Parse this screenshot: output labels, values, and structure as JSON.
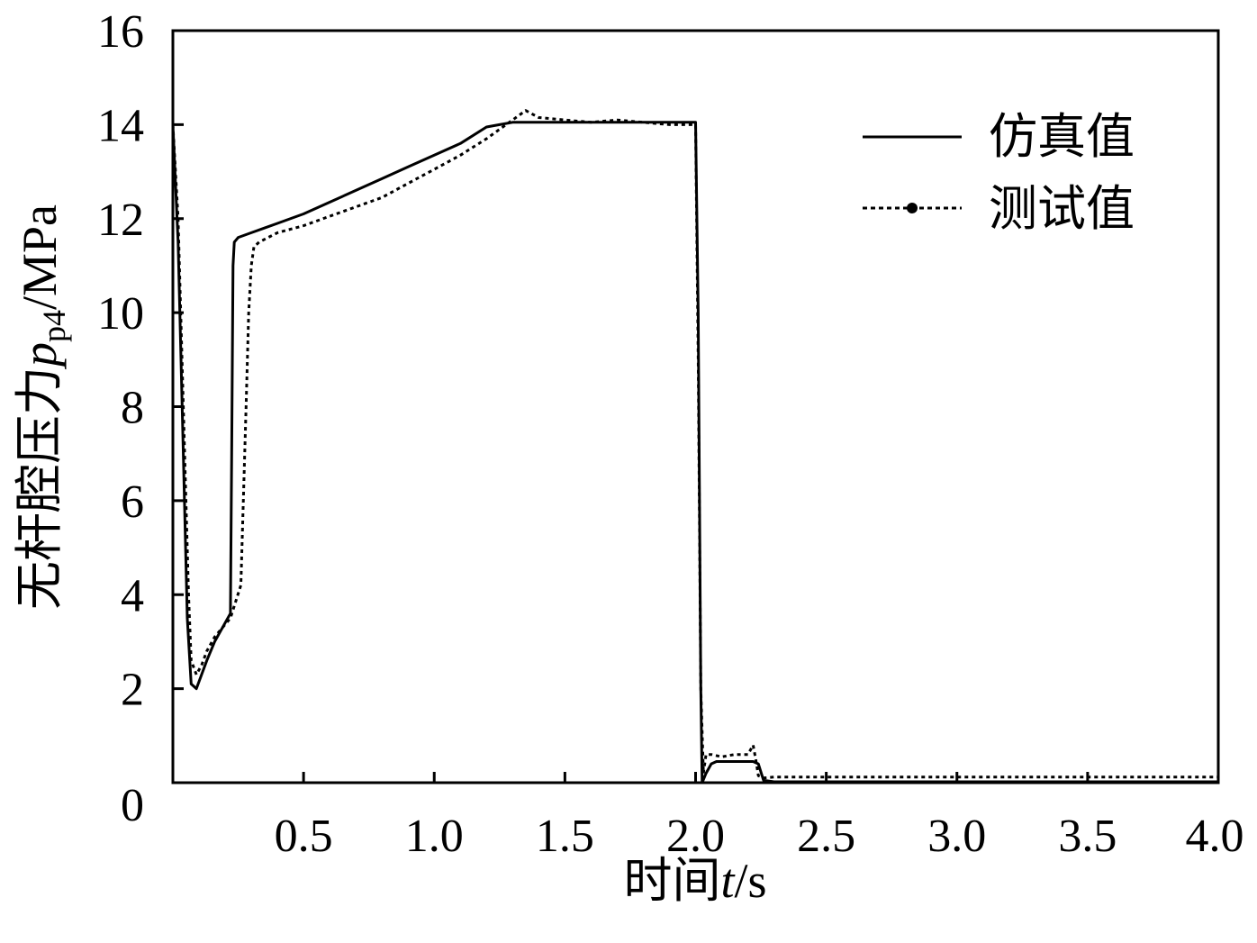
{
  "chart_data": {
    "type": "line",
    "xlabel": {
      "prefix": "时间",
      "var": "t",
      "suffix": "/s"
    },
    "ylabel": {
      "prefix": "无杆腔压力",
      "var": "p",
      "sub": "p4",
      "suffix": "/MPa"
    },
    "xlim": [
      0,
      4.0
    ],
    "ylim": [
      0,
      16
    ],
    "x_ticks": [
      0.5,
      1.0,
      1.5,
      2.0,
      2.5,
      3.0,
      3.5,
      4.0
    ],
    "x_tick_labels": [
      "0.5",
      "1.0",
      "1.5",
      "2.0",
      "2.5",
      "3.0",
      "3.5",
      "4.0"
    ],
    "y_ticks": [
      0,
      2,
      4,
      6,
      8,
      10,
      12,
      14,
      16
    ],
    "y_tick_labels": [
      "0",
      "2",
      "4",
      "6",
      "8",
      "10",
      "12",
      "14",
      "16"
    ],
    "grid": false,
    "legend_position": "top-right",
    "series": [
      {
        "name": "仿真值",
        "style": "solid",
        "color": "#000000",
        "x": [
          0.0,
          0.02,
          0.04,
          0.055,
          0.07,
          0.09,
          0.11,
          0.13,
          0.16,
          0.19,
          0.22,
          0.225,
          0.23,
          0.235,
          0.25,
          0.3,
          0.35,
          0.4,
          0.5,
          0.6,
          0.7,
          0.8,
          0.9,
          1.0,
          1.1,
          1.2,
          1.25,
          1.3,
          1.4,
          1.5,
          1.6,
          1.7,
          1.8,
          1.9,
          1.98,
          2.0,
          2.01,
          2.02,
          2.025,
          2.04,
          2.06,
          2.08,
          2.1,
          2.15,
          2.2,
          2.22,
          2.24,
          2.26,
          2.3,
          2.5,
          3.0,
          3.5,
          4.0
        ],
        "y": [
          14.0,
          11.5,
          7.0,
          3.5,
          2.1,
          2.0,
          2.3,
          2.6,
          3.0,
          3.3,
          3.6,
          7.0,
          11.0,
          11.5,
          11.6,
          11.7,
          11.8,
          11.9,
          12.1,
          12.35,
          12.6,
          12.85,
          13.1,
          13.35,
          13.6,
          13.95,
          14.0,
          14.05,
          14.05,
          14.05,
          14.05,
          14.05,
          14.05,
          14.05,
          14.05,
          14.05,
          10.0,
          2.0,
          0.0,
          0.2,
          0.4,
          0.45,
          0.45,
          0.45,
          0.45,
          0.45,
          0.4,
          0.05,
          0.02,
          0.02,
          0.02,
          0.02,
          0.02
        ]
      },
      {
        "name": "测试值",
        "style": "dotted",
        "color": "#000000",
        "x": [
          0.0,
          0.02,
          0.04,
          0.06,
          0.07,
          0.09,
          0.11,
          0.13,
          0.16,
          0.19,
          0.22,
          0.26,
          0.28,
          0.29,
          0.3,
          0.31,
          0.33,
          0.4,
          0.5,
          0.6,
          0.7,
          0.8,
          0.9,
          1.0,
          1.1,
          1.2,
          1.25,
          1.3,
          1.35,
          1.4,
          1.5,
          1.6,
          1.7,
          1.8,
          1.9,
          2.0,
          2.01,
          2.02,
          2.03,
          2.04,
          2.06,
          2.1,
          2.15,
          2.2,
          2.22,
          2.23,
          2.24,
          2.26,
          2.3,
          2.5,
          3.0,
          3.5,
          4.0
        ],
        "y": [
          14.0,
          12.0,
          8.0,
          4.0,
          2.6,
          2.3,
          2.5,
          2.8,
          3.1,
          3.3,
          3.5,
          4.2,
          8.0,
          10.0,
          11.0,
          11.4,
          11.5,
          11.7,
          11.85,
          12.05,
          12.25,
          12.45,
          12.75,
          13.05,
          13.35,
          13.7,
          13.9,
          14.1,
          14.3,
          14.15,
          14.1,
          14.05,
          14.1,
          14.05,
          14.0,
          14.0,
          9.0,
          2.0,
          0.2,
          0.6,
          0.6,
          0.55,
          0.6,
          0.6,
          0.8,
          0.5,
          0.15,
          0.1,
          0.12,
          0.12,
          0.12,
          0.12,
          0.12
        ]
      }
    ]
  }
}
